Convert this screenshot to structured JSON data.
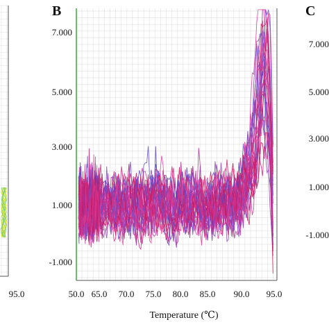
{
  "panels": {
    "b": {
      "label": "B"
    },
    "c": {
      "label": "C"
    }
  },
  "chart_data": [
    {
      "type": "line",
      "title": "",
      "note": "left panel (A), cropped; only the 95.0 x tick is visible",
      "x_ticks": [
        "95.0"
      ],
      "colors": [
        "#9acd32",
        "#d6e600",
        "#6ccf7a"
      ]
    },
    {
      "type": "line",
      "panel": "B",
      "title": "",
      "xlabel": "Temperature (℃)",
      "ylabel": "",
      "xlim": [
        50,
        95
      ],
      "ylim": [
        -1.6,
        7.7
      ],
      "x_ticks": [
        "50.0",
        "65.0",
        "70.0",
        "75.0",
        "80.0",
        "85.0",
        "90.0",
        "95.0"
      ],
      "y_ticks": [
        "7.000",
        "5.000",
        "3.000",
        "1.000",
        "-1.000"
      ],
      "grid": true,
      "series_style": "many overlapping noisy traces, baseline ~1.0 between 52 and 89, rising to a peak near 93",
      "colors": [
        "#cc2277",
        "#d4358f",
        "#7a3fd0",
        "#5a48c8",
        "#b03090",
        "#e040a0",
        "#8e44ad",
        "#c2185b"
      ],
      "peak_x": 93.3,
      "peak_y_max": 7.8
    },
    {
      "type": "line",
      "panel": "C",
      "title": "",
      "note": "right panel, cropped; only y ticks visible",
      "y_ticks": [
        "7.000",
        "5.000",
        "3.000",
        "1.000",
        "-1.000"
      ]
    }
  ]
}
